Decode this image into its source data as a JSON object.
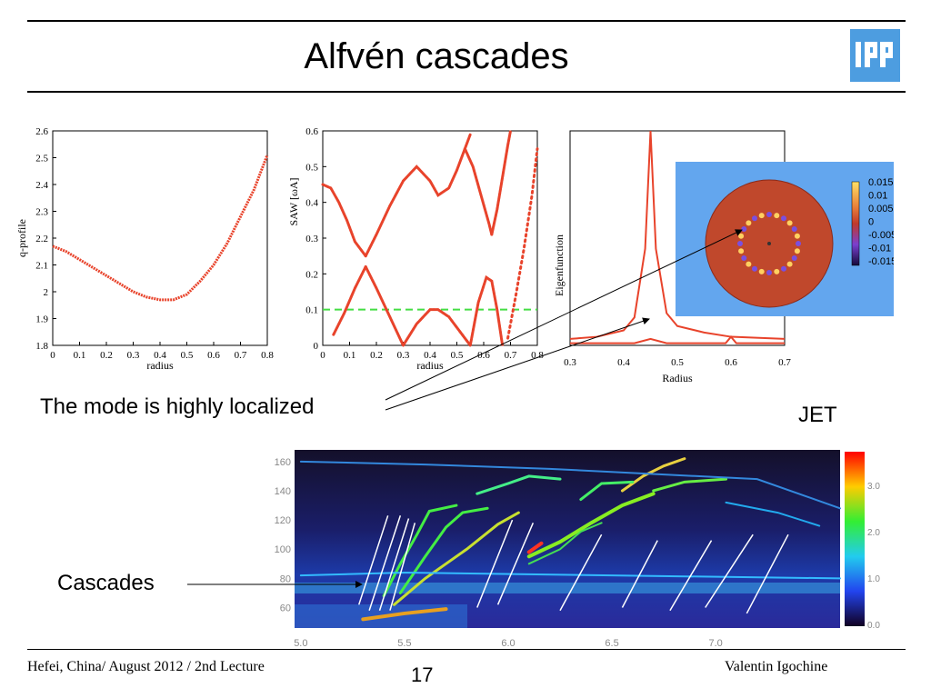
{
  "slide": {
    "title": "Alfvén cascades",
    "logo_text": "IPP",
    "annotation_localized": "The mode is highly localized",
    "annotation_cascades": "Cascades",
    "jet_label": "JET"
  },
  "footer": {
    "left": "Hefei, China/ August 2012 / 2nd Lecture",
    "page": "17",
    "right": "Valentin Igochine"
  },
  "colors": {
    "curve": "#e8432b",
    "accent_dash": "#44dd44",
    "logo": "#4d9de0"
  },
  "chart_data": [
    {
      "type": "line",
      "xlabel": "radius",
      "ylabel": "q-profile",
      "xlim": [
        0,
        0.8
      ],
      "ylim": [
        1.8,
        2.6
      ],
      "xticks": [
        "0",
        "0.1",
        "0.2",
        "0.3",
        "0.4",
        "0.5",
        "0.6",
        "0.7",
        "0.8"
      ],
      "yticks": [
        "2.6",
        "2.5",
        "2.4",
        "2.3",
        "2.2",
        "2.1",
        "2",
        "1.9",
        "1.8"
      ],
      "series": [
        {
          "x": [
            0,
            0.05,
            0.1,
            0.15,
            0.2,
            0.25,
            0.3,
            0.35,
            0.4,
            0.45,
            0.5,
            0.55,
            0.6,
            0.65,
            0.7,
            0.75,
            0.8
          ],
          "y": [
            2.17,
            2.15,
            2.12,
            2.09,
            2.06,
            2.03,
            2.0,
            1.98,
            1.97,
            1.97,
            1.99,
            2.04,
            2.1,
            2.18,
            2.28,
            2.38,
            2.51
          ]
        }
      ]
    },
    {
      "type": "scatter",
      "xlabel": "radius",
      "ylabel": "SAW [ωA]",
      "xlim": [
        0,
        0.8
      ],
      "ylim": [
        0,
        0.6
      ],
      "xticks": [
        "0",
        "0.1",
        "0.2",
        "0.3",
        "0.4",
        "0.5",
        "0.6",
        "0.7",
        "0.8"
      ],
      "yticks": [
        "0.6",
        "0.5",
        "0.4",
        "0.3",
        "0.2",
        "0.1",
        "0"
      ],
      "dashed_line_y": 0.1,
      "series": [
        {
          "x": [
            0,
            0.03,
            0.06,
            0.09,
            0.12,
            0.16
          ],
          "y": [
            0.45,
            0.44,
            0.4,
            0.35,
            0.29,
            0.25
          ]
        },
        {
          "x": [
            0.16,
            0.2,
            0.25,
            0.3,
            0.35,
            0.4,
            0.43,
            0.47,
            0.5,
            0.53,
            0.55
          ],
          "y": [
            0.25,
            0.31,
            0.39,
            0.46,
            0.5,
            0.46,
            0.42,
            0.44,
            0.49,
            0.55,
            0.59
          ]
        },
        {
          "x": [
            0.04,
            0.08,
            0.12,
            0.16
          ],
          "y": [
            0.03,
            0.09,
            0.16,
            0.22
          ]
        },
        {
          "x": [
            0.16,
            0.2,
            0.25,
            0.3
          ],
          "y": [
            0.22,
            0.16,
            0.08,
            0.0
          ]
        },
        {
          "x": [
            0.3,
            0.35,
            0.4,
            0.43,
            0.47,
            0.52,
            0.55
          ],
          "y": [
            0.0,
            0.06,
            0.1,
            0.1,
            0.08,
            0.03,
            0.0
          ]
        },
        {
          "x": [
            0.55,
            0.58,
            0.61,
            0.63,
            0.65,
            0.67
          ],
          "y": [
            0.0,
            0.12,
            0.19,
            0.18,
            0.1,
            0.0
          ]
        },
        {
          "x": [
            0.53,
            0.56,
            0.59,
            0.62,
            0.63
          ],
          "y": [
            0.55,
            0.5,
            0.42,
            0.34,
            0.31
          ]
        },
        {
          "x": [
            0.63,
            0.65,
            0.67,
            0.69,
            0.7
          ],
          "y": [
            0.31,
            0.38,
            0.47,
            0.56,
            0.6
          ]
        },
        {
          "x": [
            0.69,
            0.72,
            0.75,
            0.78,
            0.8
          ],
          "y": [
            0.02,
            0.14,
            0.27,
            0.42,
            0.55
          ]
        }
      ]
    },
    {
      "type": "line",
      "xlabel": "Radius",
      "ylabel": "Eigenfunction",
      "xlim": [
        0.3,
        0.7
      ],
      "xticks": [
        "0.3",
        "0.4",
        "0.5",
        "0.6",
        "0.7"
      ],
      "series": [
        {
          "x": [
            0.3,
            0.35,
            0.4,
            0.42,
            0.44,
            0.45,
            0.46,
            0.48,
            0.5,
            0.55,
            0.6,
            0.7
          ],
          "y": [
            0.03,
            0.04,
            0.07,
            0.13,
            0.45,
            1.0,
            0.45,
            0.15,
            0.09,
            0.06,
            0.04,
            0.03
          ]
        }
      ]
    },
    {
      "type": "heatmap",
      "xticks": [
        "5.0",
        "5.5",
        "6.0",
        "6.5",
        "7.0"
      ],
      "yticks": [
        "160",
        "140",
        "120",
        "100",
        "80",
        "60"
      ],
      "colorbar_ticks": [
        "3.0",
        "2.0",
        "1.0",
        "0.0"
      ]
    }
  ],
  "inset_colorbar": [
    "0.015",
    "0.01",
    "0.005",
    "0",
    "-0.005",
    "-0.01",
    "-0.015"
  ]
}
